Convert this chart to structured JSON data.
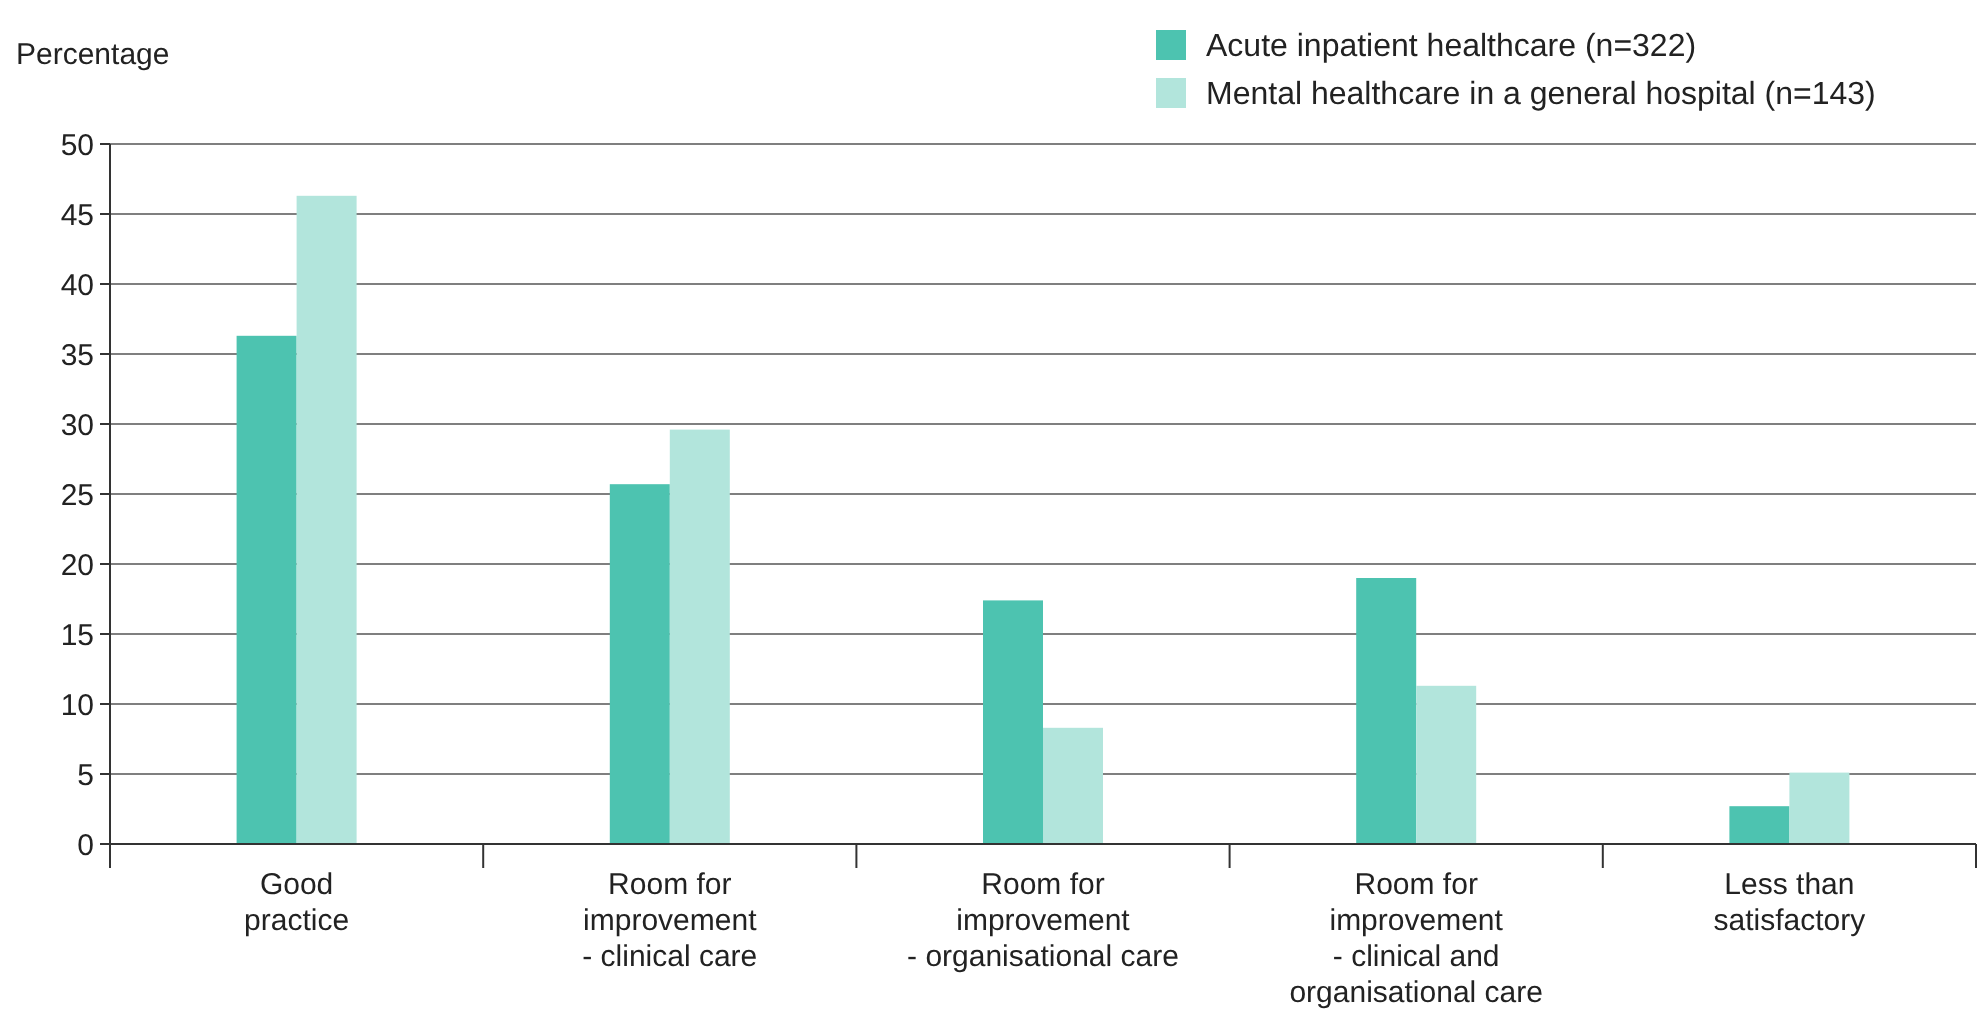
{
  "chart_data": {
    "type": "bar",
    "ylabel": "Percentage",
    "categories": [
      "Good\npractice",
      "Room for\nimprovement\n- clinical care",
      "Room for\nimprovement\n- organisational care",
      "Room for\nimprovement\n- clinical and\norganisational care",
      "Less than\nsatisfactory"
    ],
    "series": [
      {
        "name": "Acute inpatient healthcare (n=322)",
        "color": "#4dc3b0",
        "values": [
          36.3,
          25.7,
          17.4,
          19.0,
          2.7
        ]
      },
      {
        "name": "Mental healthcare in a general hospital (n=143)",
        "color": "#b2e5dc",
        "values": [
          46.3,
          29.6,
          8.3,
          11.3,
          5.1
        ]
      }
    ],
    "ylim": [
      0,
      50
    ],
    "yticks": [
      0,
      5,
      10,
      15,
      20,
      25,
      30,
      35,
      40,
      45,
      50
    ],
    "grid": "y",
    "legend": "top right"
  }
}
